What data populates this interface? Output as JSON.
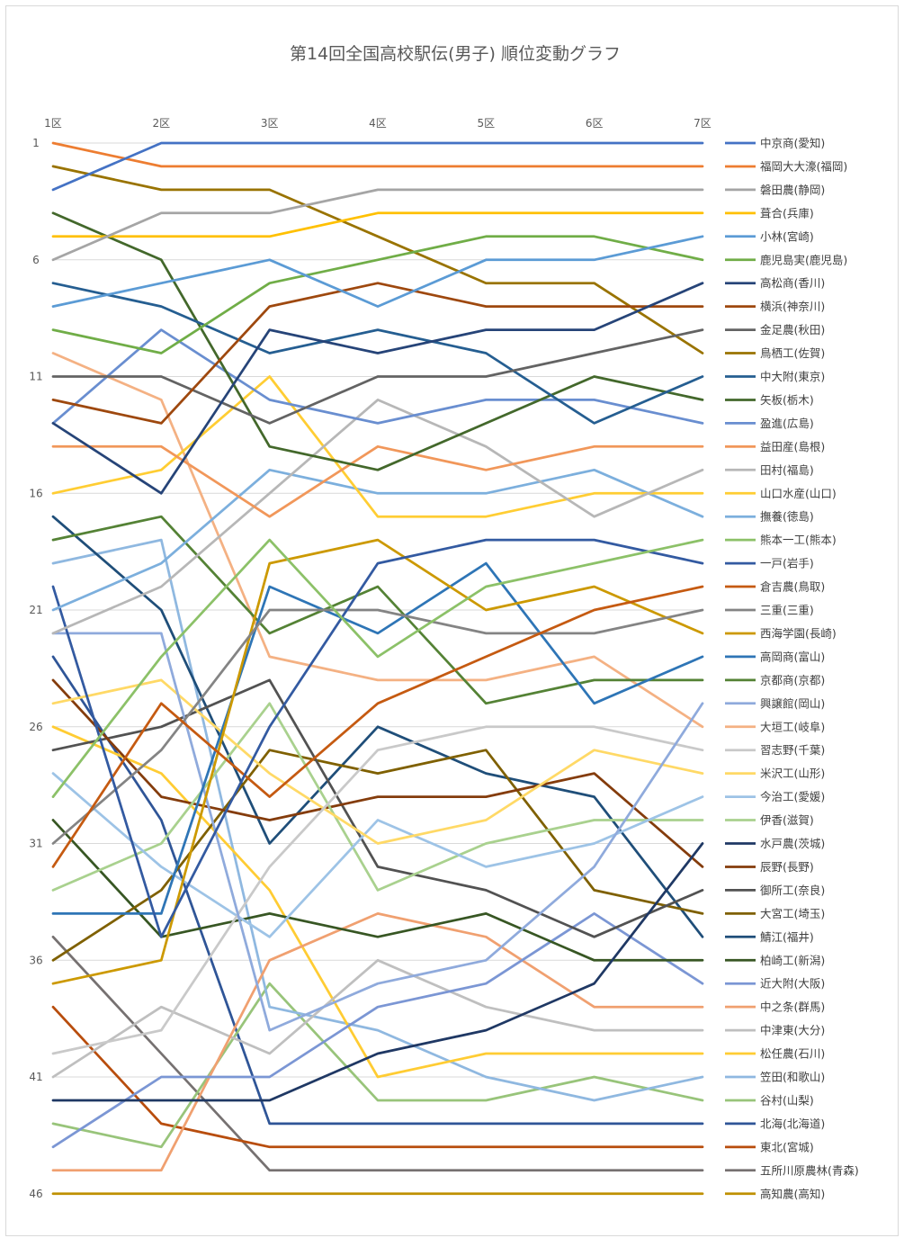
{
  "chart_data": {
    "type": "line",
    "title": "第14回全国高校駅伝(男子) 順位変動グラフ",
    "x": [
      "1区",
      "2区",
      "3区",
      "4区",
      "5区",
      "6区",
      "7区"
    ],
    "y_tick_labels": [
      "1",
      "6",
      "11",
      "16",
      "21",
      "26",
      "31",
      "36",
      "41",
      "46"
    ],
    "ylim": [
      1,
      46
    ],
    "y_reversed": true,
    "grid": true,
    "legend": "right",
    "series": [
      {
        "name": "中京商(愛知)",
        "color": "#4472c4",
        "values": [
          3,
          1,
          1,
          1,
          1,
          1,
          1
        ]
      },
      {
        "name": "福岡大大濠(福岡)",
        "color": "#ed7d31",
        "values": [
          1,
          2,
          2,
          2,
          2,
          2,
          2
        ]
      },
      {
        "name": "磐田農(静岡)",
        "color": "#a5a5a5",
        "values": [
          6,
          4,
          4,
          3,
          3,
          3,
          3
        ]
      },
      {
        "name": "葺合(兵庫)",
        "color": "#ffc000",
        "values": [
          5,
          5,
          5,
          4,
          4,
          4,
          4
        ]
      },
      {
        "name": "小林(宮崎)",
        "color": "#5b9bd5",
        "values": [
          8,
          7,
          6,
          8,
          6,
          6,
          5
        ]
      },
      {
        "name": "鹿児島実(鹿児島)",
        "color": "#70ad47",
        "values": [
          9,
          10,
          7,
          6,
          5,
          5,
          6
        ]
      },
      {
        "name": "高松商(香川)",
        "color": "#264478",
        "values": [
          13,
          16,
          9,
          10,
          9,
          9,
          7
        ]
      },
      {
        "name": "横浜(神奈川)",
        "color": "#9e480e",
        "values": [
          12,
          13,
          8,
          7,
          8,
          8,
          8
        ]
      },
      {
        "name": "金足農(秋田)",
        "color": "#636363",
        "values": [
          11,
          11,
          13,
          11,
          11,
          10,
          9
        ]
      },
      {
        "name": "鳥栖工(佐賀)",
        "color": "#997300",
        "values": [
          2,
          3,
          3,
          5,
          7,
          7,
          10
        ]
      },
      {
        "name": "中大附(東京)",
        "color": "#255e91",
        "values": [
          7,
          8,
          10,
          9,
          10,
          13,
          11
        ]
      },
      {
        "name": "矢板(栃木)",
        "color": "#43682b",
        "values": [
          4,
          6,
          14,
          15,
          13,
          11,
          12
        ]
      },
      {
        "name": "盈進(広島)",
        "color": "#698ed0",
        "values": [
          13,
          9,
          12,
          13,
          12,
          12,
          13
        ]
      },
      {
        "name": "益田産(島根)",
        "color": "#f1975a",
        "values": [
          14,
          14,
          17,
          14,
          15,
          14,
          14
        ]
      },
      {
        "name": "田村(福島)",
        "color": "#b7b7b7",
        "values": [
          22,
          20,
          16,
          12,
          14,
          17,
          15
        ]
      },
      {
        "name": "山口水産(山口)",
        "color": "#ffcd33",
        "values": [
          16,
          15,
          11,
          17,
          17,
          16,
          16
        ]
      },
      {
        "name": "撫養(徳島)",
        "color": "#7cafdd",
        "values": [
          21,
          19,
          15,
          16,
          16,
          15,
          17
        ]
      },
      {
        "name": "熊本一工(熊本)",
        "color": "#8cc168",
        "values": [
          29,
          23,
          18,
          23,
          20,
          19,
          18
        ]
      },
      {
        "name": "一戸(岩手)",
        "color": "#335aa1",
        "values": [
          20,
          35,
          26,
          19,
          18,
          18,
          19
        ]
      },
      {
        "name": "倉吉農(鳥取)",
        "color": "#c55a11",
        "values": [
          32,
          25,
          29,
          25,
          23,
          21,
          20
        ]
      },
      {
        "name": "三重(三重)",
        "color": "#848484",
        "values": [
          31,
          27,
          21,
          21,
          22,
          22,
          21
        ]
      },
      {
        "name": "西海学園(長崎)",
        "color": "#cc9900",
        "values": [
          37,
          36,
          19,
          18,
          21,
          20,
          22
        ]
      },
      {
        "name": "高岡商(富山)",
        "color": "#2e75b6",
        "values": [
          34,
          34,
          20,
          22,
          19,
          25,
          23
        ]
      },
      {
        "name": "京都商(京都)",
        "color": "#548235",
        "values": [
          18,
          17,
          22,
          20,
          25,
          24,
          24
        ]
      },
      {
        "name": "興譲館(岡山)",
        "color": "#8faadc",
        "values": [
          22,
          22,
          39,
          37,
          36,
          32,
          25
        ]
      },
      {
        "name": "大垣工(岐阜)",
        "color": "#f4b183",
        "values": [
          10,
          12,
          23,
          24,
          24,
          23,
          26
        ]
      },
      {
        "name": "習志野(千葉)",
        "color": "#c9c9c9",
        "values": [
          40,
          39,
          32,
          27,
          26,
          26,
          27
        ]
      },
      {
        "name": "米沢工(山形)",
        "color": "#ffd966",
        "values": [
          25,
          24,
          28,
          31,
          30,
          27,
          28
        ]
      },
      {
        "name": "今治工(愛媛)",
        "color": "#9dc3e6",
        "values": [
          28,
          32,
          35,
          30,
          32,
          31,
          29
        ]
      },
      {
        "name": "伊香(滋賀)",
        "color": "#a9d18e",
        "values": [
          33,
          31,
          25,
          33,
          31,
          30,
          30
        ]
      },
      {
        "name": "水戸農(茨城)",
        "color": "#1f3864",
        "values": [
          42,
          42,
          42,
          40,
          39,
          37,
          31
        ]
      },
      {
        "name": "辰野(長野)",
        "color": "#843c0c",
        "values": [
          24,
          29,
          30,
          29,
          29,
          28,
          32
        ]
      },
      {
        "name": "御所工(奈良)",
        "color": "#525252",
        "values": [
          27,
          26,
          24,
          32,
          33,
          35,
          33
        ]
      },
      {
        "name": "大宮工(埼玉)",
        "color": "#7f6000",
        "values": [
          36,
          33,
          27,
          28,
          27,
          33,
          34
        ]
      },
      {
        "name": "鯖江(福井)",
        "color": "#1f4e79",
        "values": [
          17,
          21,
          31,
          26,
          28,
          29,
          35
        ]
      },
      {
        "name": "柏崎工(新潟)",
        "color": "#375623",
        "values": [
          30,
          35,
          34,
          35,
          34,
          36,
          36
        ]
      },
      {
        "name": "近大附(大阪)",
        "color": "#7b96d4",
        "values": [
          44,
          41,
          41,
          38,
          37,
          34,
          37
        ]
      },
      {
        "name": "中之条(群馬)",
        "color": "#f0a070",
        "values": [
          45,
          45,
          36,
          34,
          35,
          38,
          38
        ]
      },
      {
        "name": "中津東(大分)",
        "color": "#bfbfbf",
        "values": [
          41,
          38,
          40,
          36,
          38,
          39,
          39
        ]
      },
      {
        "name": "松任農(石川)",
        "color": "#ffcc33",
        "values": [
          26,
          28,
          33,
          41,
          40,
          40,
          40
        ]
      },
      {
        "name": "笠田(和歌山)",
        "color": "#8fb8e0",
        "values": [
          19,
          18,
          38,
          39,
          41,
          42,
          41
        ]
      },
      {
        "name": "谷村(山梨)",
        "color": "#98c47a",
        "values": [
          43,
          44,
          37,
          42,
          42,
          41,
          42
        ]
      },
      {
        "name": "北海(北海道)",
        "color": "#2f5597",
        "values": [
          23,
          30,
          43,
          43,
          43,
          43,
          43
        ]
      },
      {
        "name": "東北(宮城)",
        "color": "#b84d0d",
        "values": [
          38,
          43,
          44,
          44,
          44,
          44,
          44
        ]
      },
      {
        "name": "五所川原農林(青森)",
        "color": "#767171",
        "values": [
          35,
          40,
          45,
          45,
          45,
          45,
          45
        ]
      },
      {
        "name": "高知農(高知)",
        "color": "#bf9000",
        "values": [
          46,
          46,
          46,
          46,
          46,
          46,
          46
        ]
      }
    ]
  }
}
